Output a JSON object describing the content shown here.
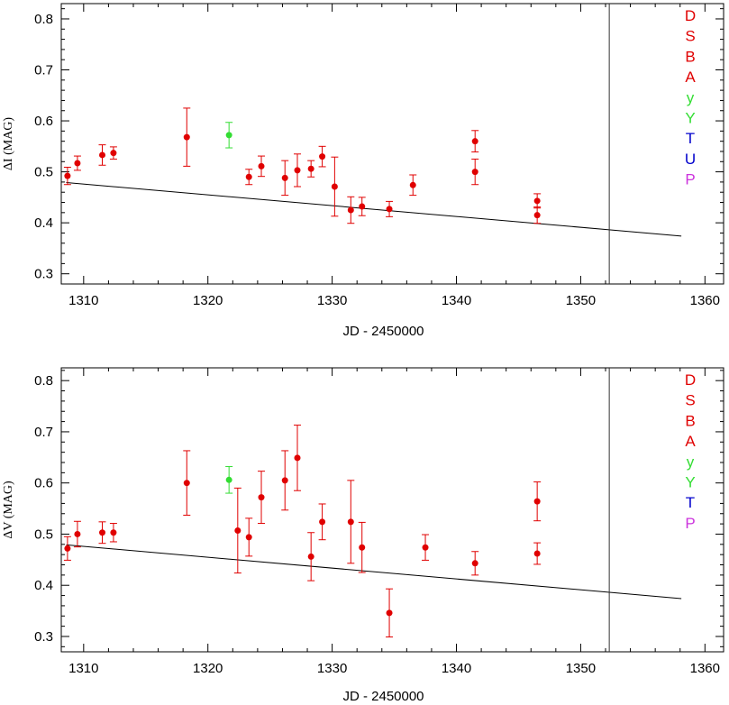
{
  "chart_data": [
    {
      "type": "scatter",
      "ylabel": "ΔI (MAG)",
      "xlabel": "JD - 2450000",
      "xlim": [
        1308.2,
        1361.5
      ],
      "ylim": [
        0.28,
        0.83
      ],
      "xticks": [
        1310,
        1320,
        1330,
        1340,
        1350,
        1360
      ],
      "yticks": [
        0.3,
        0.4,
        0.5,
        0.6,
        0.7,
        0.8
      ],
      "vertical_line_x": 1352.3,
      "trend_line": {
        "x": [
          1308.6,
          1358.1
        ],
        "y": [
          0.479,
          0.374
        ]
      },
      "legend": [
        {
          "label": "D",
          "color": "#e00000"
        },
        {
          "label": "S",
          "color": "#e00000"
        },
        {
          "label": "B",
          "color": "#e00000"
        },
        {
          "label": "A",
          "color": "#e00000"
        },
        {
          "label": "y",
          "color": "#33dd33"
        },
        {
          "label": "Y",
          "color": "#33dd33"
        },
        {
          "label": "T",
          "color": "#0000cc"
        },
        {
          "label": "U",
          "color": "#0000cc"
        },
        {
          "label": "P",
          "color": "#cc33dd"
        }
      ],
      "points": [
        {
          "x": 1308.7,
          "y": 0.492,
          "err": 0.017,
          "color": "#e00000"
        },
        {
          "x": 1309.5,
          "y": 0.517,
          "err": 0.014,
          "color": "#e00000"
        },
        {
          "x": 1311.5,
          "y": 0.533,
          "err": 0.02,
          "color": "#e00000"
        },
        {
          "x": 1312.4,
          "y": 0.537,
          "err": 0.012,
          "color": "#e00000"
        },
        {
          "x": 1318.3,
          "y": 0.568,
          "err": 0.057,
          "color": "#e00000"
        },
        {
          "x": 1321.7,
          "y": 0.572,
          "err": 0.025,
          "color": "#33dd33"
        },
        {
          "x": 1323.3,
          "y": 0.49,
          "err": 0.015,
          "color": "#e00000"
        },
        {
          "x": 1324.3,
          "y": 0.511,
          "err": 0.02,
          "color": "#e00000"
        },
        {
          "x": 1326.2,
          "y": 0.488,
          "err": 0.034,
          "color": "#e00000"
        },
        {
          "x": 1327.2,
          "y": 0.503,
          "err": 0.032,
          "color": "#e00000"
        },
        {
          "x": 1328.3,
          "y": 0.506,
          "err": 0.016,
          "color": "#e00000"
        },
        {
          "x": 1329.2,
          "y": 0.53,
          "err": 0.02,
          "color": "#e00000"
        },
        {
          "x": 1330.2,
          "y": 0.471,
          "err": 0.058,
          "color": "#e00000"
        },
        {
          "x": 1331.5,
          "y": 0.425,
          "err": 0.026,
          "color": "#e00000"
        },
        {
          "x": 1332.4,
          "y": 0.432,
          "err": 0.018,
          "color": "#e00000"
        },
        {
          "x": 1334.6,
          "y": 0.427,
          "err": 0.015,
          "color": "#e00000"
        },
        {
          "x": 1336.5,
          "y": 0.474,
          "err": 0.02,
          "color": "#e00000"
        },
        {
          "x": 1341.5,
          "y": 0.56,
          "err": 0.021,
          "color": "#e00000"
        },
        {
          "x": 1341.5,
          "y": 0.5,
          "err": 0.025,
          "color": "#e00000"
        },
        {
          "x": 1346.5,
          "y": 0.443,
          "err": 0.014,
          "color": "#e00000"
        },
        {
          "x": 1346.5,
          "y": 0.415,
          "err": 0.016,
          "color": "#e00000"
        }
      ]
    },
    {
      "type": "scatter",
      "ylabel": "ΔV (MAG)",
      "xlabel": "JD - 2450000",
      "xlim": [
        1308.2,
        1361.5
      ],
      "ylim": [
        0.27,
        0.825
      ],
      "xticks": [
        1310,
        1320,
        1330,
        1340,
        1350,
        1360
      ],
      "yticks": [
        0.3,
        0.4,
        0.5,
        0.6,
        0.7,
        0.8
      ],
      "vertical_line_x": 1352.3,
      "trend_line": {
        "x": [
          1308.6,
          1358.1
        ],
        "y": [
          0.479,
          0.374
        ]
      },
      "legend": [
        {
          "label": "D",
          "color": "#e00000"
        },
        {
          "label": "S",
          "color": "#e00000"
        },
        {
          "label": "B",
          "color": "#e00000"
        },
        {
          "label": "A",
          "color": "#e00000"
        },
        {
          "label": "y",
          "color": "#33dd33"
        },
        {
          "label": "Y",
          "color": "#33dd33"
        },
        {
          "label": "T",
          "color": "#0000cc"
        },
        {
          "label": "P",
          "color": "#cc33dd"
        }
      ],
      "points": [
        {
          "x": 1308.7,
          "y": 0.472,
          "err": 0.023,
          "color": "#e00000"
        },
        {
          "x": 1309.5,
          "y": 0.5,
          "err": 0.025,
          "color": "#e00000"
        },
        {
          "x": 1311.5,
          "y": 0.503,
          "err": 0.021,
          "color": "#e00000"
        },
        {
          "x": 1312.4,
          "y": 0.503,
          "err": 0.018,
          "color": "#e00000"
        },
        {
          "x": 1318.3,
          "y": 0.6,
          "err": 0.063,
          "color": "#e00000"
        },
        {
          "x": 1321.7,
          "y": 0.606,
          "err": 0.026,
          "color": "#33dd33"
        },
        {
          "x": 1322.4,
          "y": 0.507,
          "err": 0.083,
          "color": "#e00000"
        },
        {
          "x": 1323.3,
          "y": 0.494,
          "err": 0.037,
          "color": "#e00000"
        },
        {
          "x": 1324.3,
          "y": 0.572,
          "err": 0.051,
          "color": "#e00000"
        },
        {
          "x": 1326.2,
          "y": 0.605,
          "err": 0.058,
          "color": "#e00000"
        },
        {
          "x": 1327.2,
          "y": 0.649,
          "err": 0.064,
          "color": "#e00000"
        },
        {
          "x": 1328.3,
          "y": 0.456,
          "err": 0.047,
          "color": "#e00000"
        },
        {
          "x": 1329.2,
          "y": 0.524,
          "err": 0.035,
          "color": "#e00000"
        },
        {
          "x": 1331.5,
          "y": 0.524,
          "err": 0.081,
          "color": "#e00000"
        },
        {
          "x": 1332.4,
          "y": 0.474,
          "err": 0.049,
          "color": "#e00000"
        },
        {
          "x": 1334.6,
          "y": 0.346,
          "err": 0.047,
          "color": "#e00000"
        },
        {
          "x": 1337.5,
          "y": 0.474,
          "err": 0.025,
          "color": "#e00000"
        },
        {
          "x": 1341.5,
          "y": 0.443,
          "err": 0.023,
          "color": "#e00000"
        },
        {
          "x": 1346.5,
          "y": 0.564,
          "err": 0.038,
          "color": "#e00000"
        },
        {
          "x": 1346.5,
          "y": 0.462,
          "err": 0.021,
          "color": "#e00000"
        }
      ]
    }
  ]
}
